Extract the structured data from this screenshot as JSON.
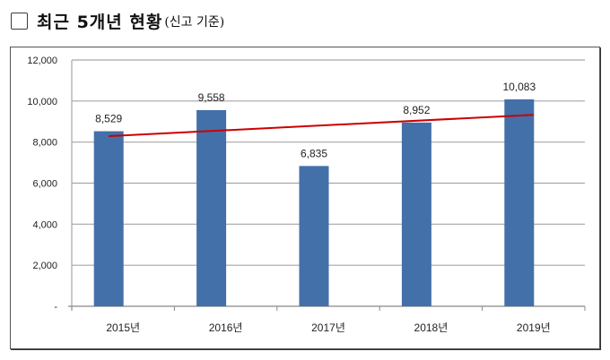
{
  "header": {
    "title": "최근 5개년 현황",
    "subtitle": "(신고 기준)"
  },
  "chart_data": {
    "type": "bar",
    "categories": [
      "2015년",
      "2016년",
      "2017년",
      "2018년",
      "2019년"
    ],
    "values": [
      8529,
      9558,
      6835,
      8952,
      10083
    ],
    "data_labels": [
      "8,529",
      "9,558",
      "6,835",
      "8,952",
      "10,083"
    ],
    "yticks": [
      0,
      2000,
      4000,
      6000,
      8000,
      10000,
      12000
    ],
    "ytick_labels": [
      "-",
      "2,000",
      "4,000",
      "6,000",
      "8,000",
      "10,000",
      "12,000"
    ],
    "ylim": [
      0,
      12000
    ],
    "grid": true,
    "trendline": {
      "type": "linear",
      "start": 8290.6,
      "end": 9291.8
    },
    "colors": {
      "bar": "#4370a8",
      "trend": "#cc0000",
      "grid": "#a6a6a6"
    },
    "title": "",
    "xlabel": "",
    "ylabel": ""
  }
}
